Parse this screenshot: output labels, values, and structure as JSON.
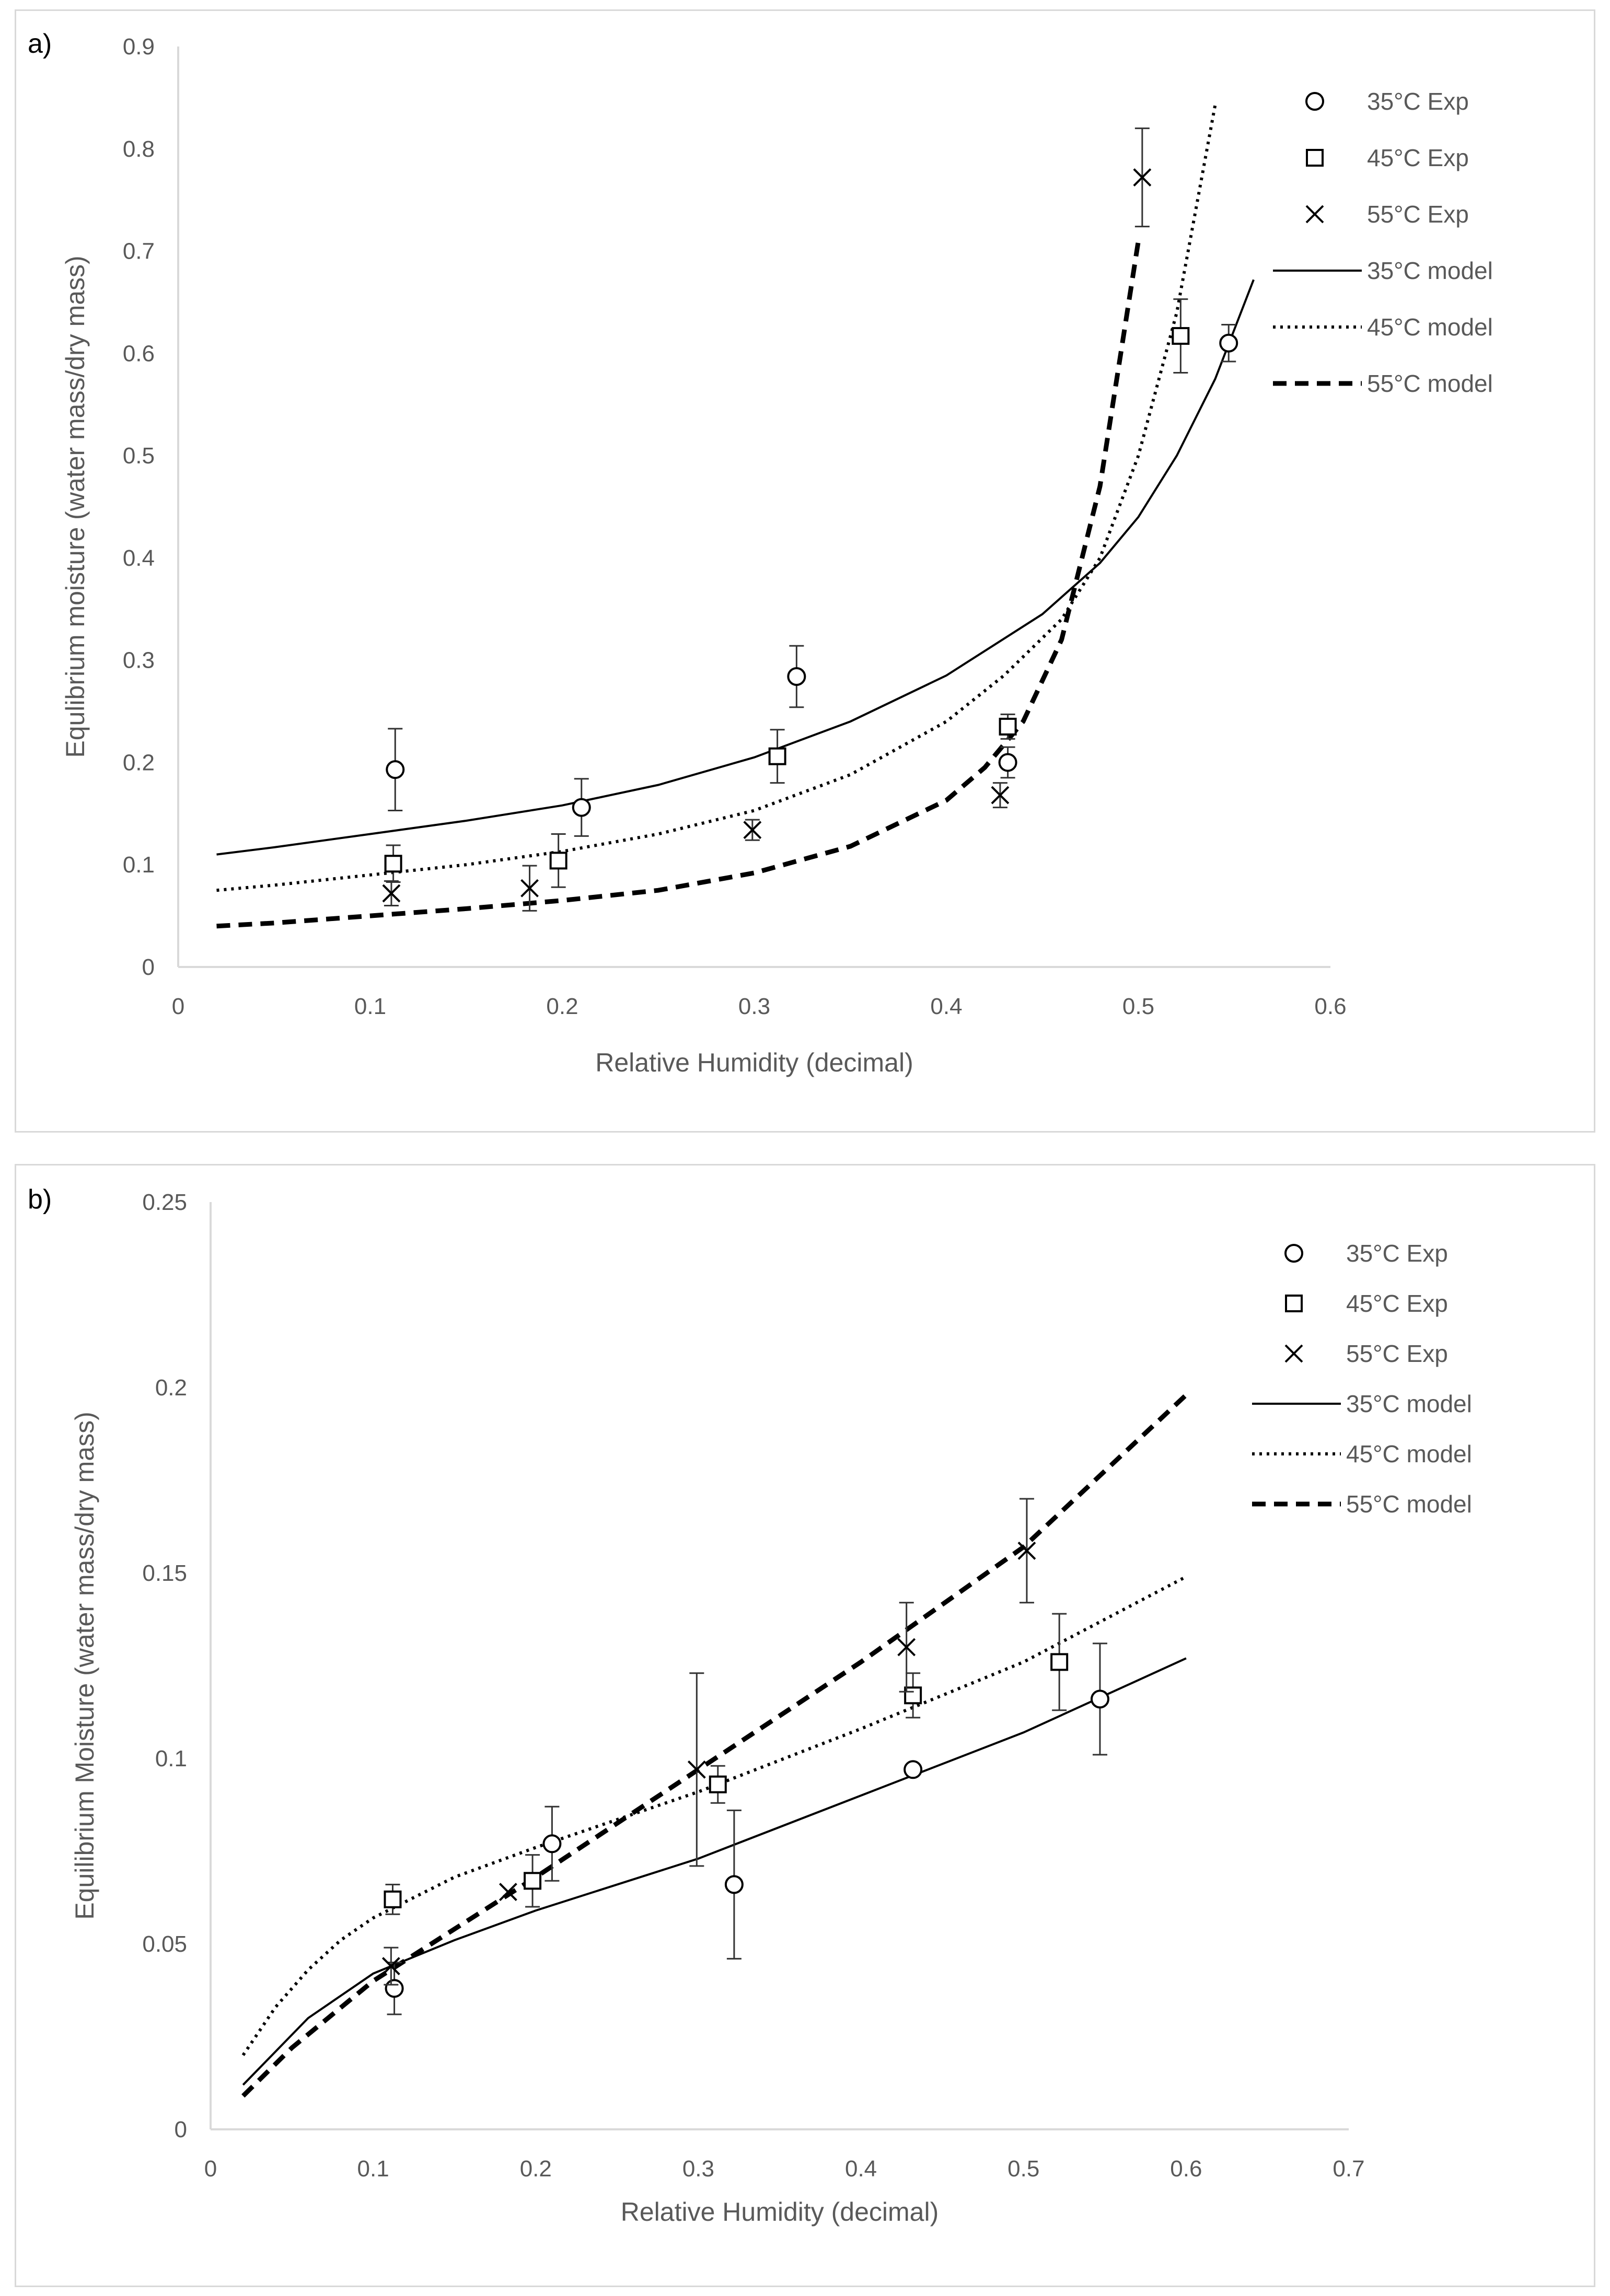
{
  "chart_data": [
    {
      "type": "scatter",
      "panel_label": "a)",
      "title": "",
      "xlabel": "Relative Humidity (decimal)",
      "ylabel": "Equlibrium moisture (water mass/dry mass)",
      "xlim": [
        0,
        0.6
      ],
      "ylim": [
        0,
        0.9
      ],
      "xticks": [
        0,
        0.1,
        0.2,
        0.3,
        0.4,
        0.5,
        0.6
      ],
      "yticks": [
        0,
        0.1,
        0.2,
        0.3,
        0.4,
        0.5,
        0.6,
        0.7,
        0.8,
        0.9
      ],
      "xtick_labels": [
        "0",
        "0.1",
        "0.2",
        "0.3",
        "0.4",
        "0.5",
        "0.6"
      ],
      "ytick_labels": [
        "0",
        "0.1",
        "0.2",
        "0.3",
        "0.4",
        "0.5",
        "0.6",
        "0.7",
        "0.8",
        "0.9"
      ],
      "grid": false,
      "legend_position": "top-right",
      "series": [
        {
          "name": "35°C Exp",
          "kind": "points",
          "marker": "circle",
          "x": [
            0.113,
            0.21,
            0.322,
            0.432,
            0.547
          ],
          "y": [
            0.193,
            0.156,
            0.284,
            0.2,
            0.61
          ],
          "err": [
            0.04,
            0.028,
            0.03,
            0.015,
            0.018
          ]
        },
        {
          "name": "45°C Exp",
          "kind": "points",
          "marker": "square",
          "x": [
            0.112,
            0.198,
            0.312,
            0.432,
            0.522
          ],
          "y": [
            0.101,
            0.104,
            0.206,
            0.235,
            0.617
          ],
          "err": [
            0.018,
            0.026,
            0.026,
            0.012,
            0.036
          ]
        },
        {
          "name": "55°C Exp",
          "kind": "points",
          "marker": "x",
          "x": [
            0.111,
            0.183,
            0.299,
            0.428,
            0.502
          ],
          "y": [
            0.072,
            0.077,
            0.134,
            0.168,
            0.772
          ],
          "err": [
            0.012,
            0.022,
            0.01,
            0.012,
            0.048
          ]
        },
        {
          "name": "35°C model",
          "kind": "line",
          "dash": "solid",
          "x": [
            0.02,
            0.05,
            0.1,
            0.15,
            0.2,
            0.25,
            0.3,
            0.35,
            0.4,
            0.45,
            0.48,
            0.5,
            0.52,
            0.54,
            0.56
          ],
          "y": [
            0.11,
            0.117,
            0.13,
            0.143,
            0.158,
            0.178,
            0.205,
            0.24,
            0.285,
            0.345,
            0.395,
            0.44,
            0.5,
            0.575,
            0.672
          ]
        },
        {
          "name": "45°C model",
          "kind": "line",
          "dash": "dotted",
          "x": [
            0.02,
            0.05,
            0.1,
            0.15,
            0.2,
            0.25,
            0.3,
            0.35,
            0.4,
            0.43,
            0.46,
            0.48,
            0.5,
            0.52,
            0.54
          ],
          "y": [
            0.075,
            0.08,
            0.09,
            0.1,
            0.113,
            0.13,
            0.153,
            0.188,
            0.24,
            0.285,
            0.34,
            0.4,
            0.5,
            0.64,
            0.843
          ]
        },
        {
          "name": "55°C model",
          "kind": "line",
          "dash": "dashed",
          "x": [
            0.02,
            0.05,
            0.1,
            0.15,
            0.2,
            0.25,
            0.3,
            0.35,
            0.4,
            0.42,
            0.44,
            0.46,
            0.48,
            0.5
          ],
          "y": [
            0.04,
            0.043,
            0.05,
            0.057,
            0.065,
            0.075,
            0.092,
            0.118,
            0.163,
            0.195,
            0.24,
            0.32,
            0.47,
            0.71
          ]
        }
      ]
    },
    {
      "type": "scatter",
      "panel_label": "b)",
      "title": "",
      "xlabel": "Relative Humidity (decimal)",
      "ylabel": "Equilibrium Moisture (water mass/dry mass)",
      "xlim": [
        0,
        0.7
      ],
      "ylim": [
        0,
        0.25
      ],
      "xticks": [
        0,
        0.1,
        0.2,
        0.3,
        0.4,
        0.5,
        0.6,
        0.7
      ],
      "yticks": [
        0,
        0.05,
        0.1,
        0.15,
        0.2,
        0.25
      ],
      "xtick_labels": [
        "0",
        "0.1",
        "0.2",
        "0.3",
        "0.4",
        "0.5",
        "0.6",
        "0.7"
      ],
      "ytick_labels": [
        "0",
        "0.05",
        "0.1",
        "0.15",
        "0.2",
        "0.25"
      ],
      "grid": false,
      "legend_position": "top-right",
      "series": [
        {
          "name": "35°C Exp",
          "kind": "points",
          "marker": "circle",
          "x": [
            0.113,
            0.21,
            0.322,
            0.432,
            0.547
          ],
          "y": [
            0.038,
            0.077,
            0.066,
            0.097,
            0.116
          ],
          "err": [
            0.007,
            0.01,
            0.02,
            0.0,
            0.015
          ]
        },
        {
          "name": "45°C Exp",
          "kind": "points",
          "marker": "square",
          "x": [
            0.112,
            0.198,
            0.312,
            0.432,
            0.522
          ],
          "y": [
            0.062,
            0.067,
            0.093,
            0.117,
            0.126
          ],
          "err": [
            0.004,
            0.007,
            0.005,
            0.006,
            0.013
          ]
        },
        {
          "name": "55°C Exp",
          "kind": "points",
          "marker": "x",
          "x": [
            0.111,
            0.183,
            0.299,
            0.428,
            0.502
          ],
          "y": [
            0.044,
            0.064,
            0.097,
            0.13,
            0.156
          ],
          "err": [
            0.005,
            0.0,
            0.026,
            0.012,
            0.014
          ]
        },
        {
          "name": "35°C model",
          "kind": "line",
          "dash": "solid",
          "x": [
            0.02,
            0.04,
            0.06,
            0.08,
            0.1,
            0.15,
            0.2,
            0.3,
            0.4,
            0.5,
            0.6
          ],
          "y": [
            0.012,
            0.021,
            0.03,
            0.036,
            0.042,
            0.051,
            0.059,
            0.073,
            0.09,
            0.107,
            0.127
          ]
        },
        {
          "name": "45°C model",
          "kind": "line",
          "dash": "dotted",
          "x": [
            0.02,
            0.04,
            0.06,
            0.08,
            0.1,
            0.15,
            0.2,
            0.3,
            0.4,
            0.5,
            0.6
          ],
          "y": [
            0.02,
            0.033,
            0.043,
            0.051,
            0.057,
            0.068,
            0.076,
            0.091,
            0.108,
            0.126,
            0.149
          ]
        },
        {
          "name": "55°C model",
          "kind": "line",
          "dash": "dashed",
          "x": [
            0.02,
            0.05,
            0.1,
            0.15,
            0.2,
            0.3,
            0.4,
            0.5,
            0.6
          ],
          "y": [
            0.009,
            0.022,
            0.04,
            0.054,
            0.068,
            0.097,
            0.126,
            0.157,
            0.198
          ]
        }
      ]
    }
  ],
  "colors": {
    "axis": "#d9d9d9",
    "series": "#000000",
    "text": "#595959"
  }
}
